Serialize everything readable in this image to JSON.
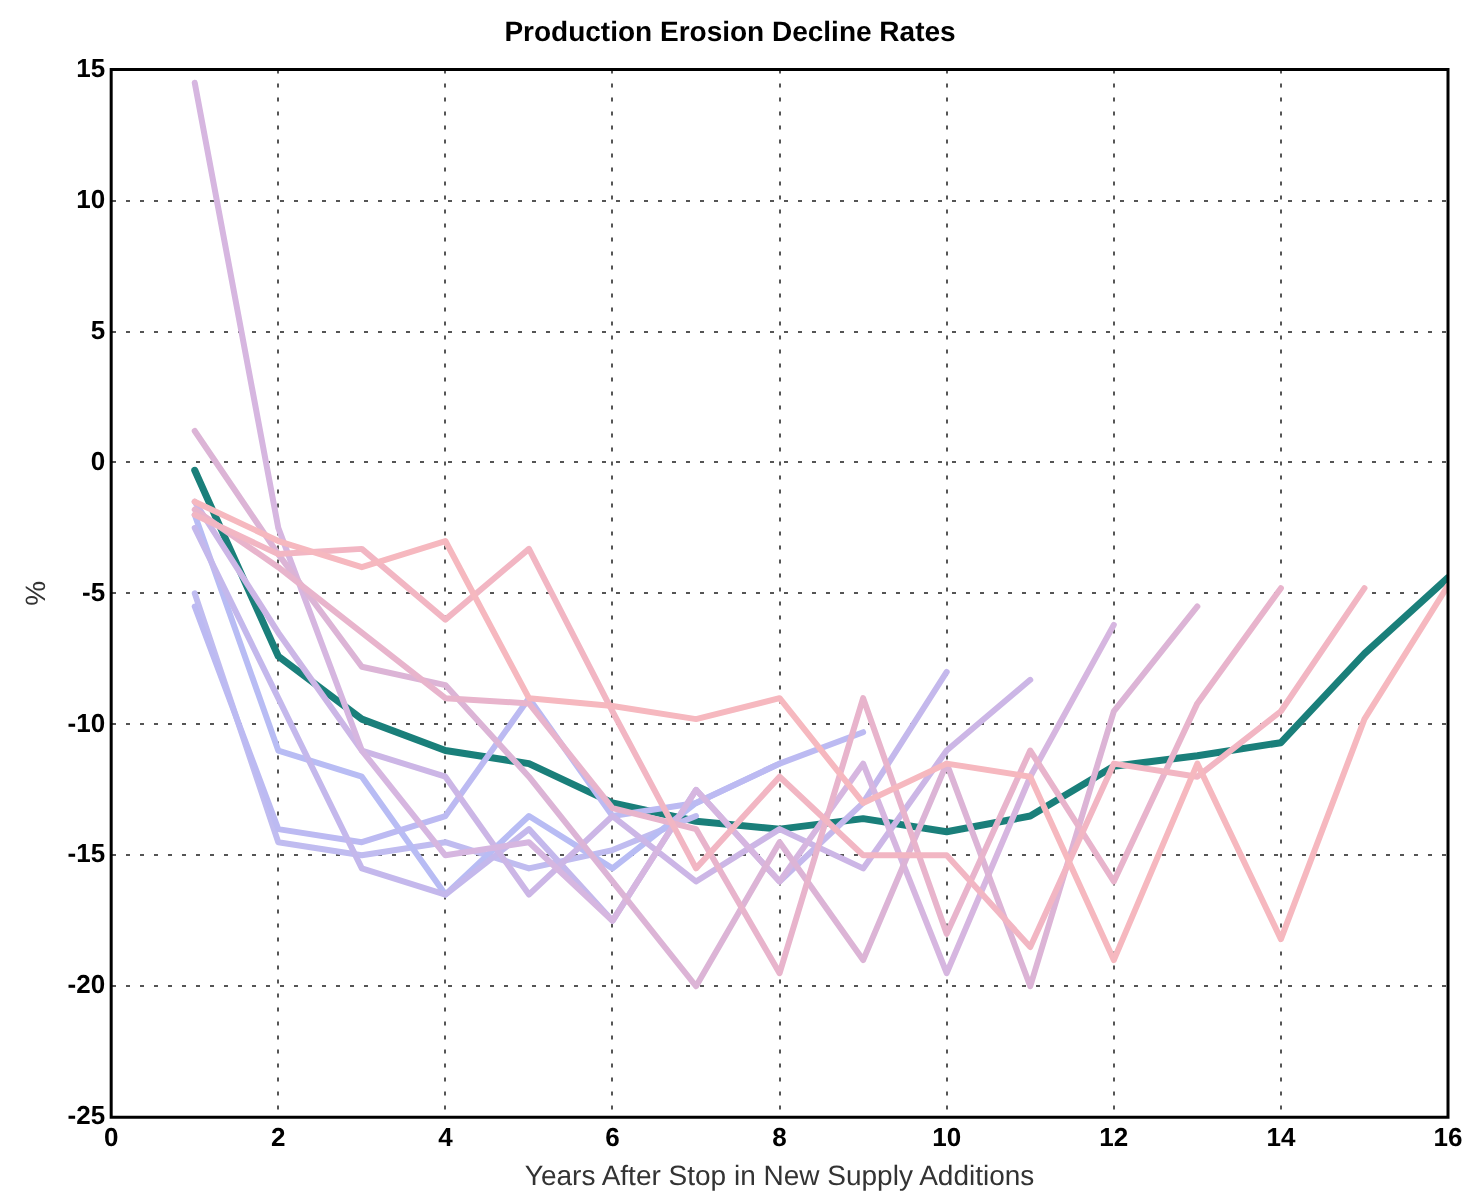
{
  "chart_data": {
    "type": "line",
    "title": "Production Erosion Decline Rates",
    "xlabel": "Years After Stop in New Supply Additions",
    "ylabel": "%",
    "xlim": [
      0,
      16
    ],
    "xticks": [
      0,
      2,
      4,
      6,
      8,
      10,
      12,
      14,
      16
    ],
    "ylim": [
      -25,
      15
    ],
    "yticks": [
      -25,
      -20,
      -15,
      -10,
      -5,
      0,
      5,
      10,
      15
    ],
    "grid": true,
    "legend": false,
    "marker": "none",
    "line_style": "solid",
    "series": [
      {
        "color": "#f6b8bf",
        "x": [
          1,
          2,
          3,
          4,
          5,
          6,
          7,
          8,
          9,
          10,
          11,
          12,
          13,
          14,
          15,
          16
        ],
        "values": [
          -1.5,
          -3,
          -4,
          -3,
          -9,
          -9.3,
          -9.8,
          -9,
          -13,
          -11.5,
          -12,
          -19,
          -11.5,
          -18.2,
          -9.8,
          -4.7
        ]
      },
      {
        "color": "#f2b6c3",
        "x": [
          1,
          2,
          3,
          4,
          5,
          6,
          7,
          8,
          9,
          10,
          11,
          12,
          13,
          14,
          15
        ],
        "values": [
          -2,
          -3.5,
          -3.3,
          -6,
          -3.3,
          -9.5,
          -15.5,
          -12,
          -15,
          -15,
          -18.5,
          -11.5,
          -12,
          -9.5,
          -4.8
        ]
      },
      {
        "color": "#e8b4cc",
        "x": [
          1,
          2,
          3,
          4,
          5,
          6,
          7,
          8,
          9,
          10,
          11,
          12,
          13,
          14
        ],
        "values": [
          -1.8,
          -4,
          -6.5,
          -9,
          -9.2,
          -13.2,
          -14,
          -19.5,
          -9,
          -18,
          -11,
          -16,
          -9.2,
          -4.8
        ]
      },
      {
        "color": "#dcb4d6",
        "x": [
          1,
          2,
          3,
          4,
          5,
          6,
          7,
          8,
          9,
          10,
          11,
          12,
          13
        ],
        "values": [
          1.2,
          -3.5,
          -7.8,
          -8.5,
          -12,
          -16,
          -20,
          -14.5,
          -19,
          -11.5,
          -20,
          -9.5,
          -5.5
        ]
      },
      {
        "color": "#d6b6e0",
        "x": [
          1,
          2,
          3,
          4,
          5,
          6,
          7,
          8,
          9,
          10,
          11,
          12
        ],
        "values": [
          14.5,
          -2.5,
          -11,
          -15,
          -14.5,
          -17.5,
          -12.5,
          -16,
          -11.5,
          -19.5,
          -12,
          -6.2
        ]
      },
      {
        "color": "#ccb6e6",
        "x": [
          1,
          2,
          3,
          4,
          5,
          6,
          7,
          8,
          9,
          10,
          11
        ],
        "values": [
          -1.5,
          -6.5,
          -11,
          -12,
          -16.5,
          -13.5,
          -16,
          -14,
          -15.5,
          -11,
          -8.3
        ]
      },
      {
        "color": "#c4b8ec",
        "x": [
          1,
          2,
          3,
          4,
          5,
          6,
          7,
          8,
          9,
          10
        ],
        "values": [
          -2.5,
          -9,
          -15.5,
          -16.5,
          -14,
          -17.5,
          -12.5,
          -16,
          -13,
          -8
        ]
      },
      {
        "color": "#bcbaf2",
        "x": [
          1,
          2,
          3,
          4,
          5,
          6,
          7,
          8,
          9
        ],
        "values": [
          -5.5,
          -14,
          -14.5,
          -13.5,
          -9,
          -13.5,
          -13,
          -11.5,
          -10.3
        ]
      },
      {
        "color": "#b8bcf4",
        "x": [
          1,
          2,
          3,
          4,
          5,
          6,
          7,
          8
        ],
        "values": [
          -2,
          -11,
          -12,
          -16.5,
          -13.5,
          -15.5,
          -13,
          -11.5
        ]
      },
      {
        "color": "#c0bcf0",
        "x": [
          1,
          2,
          3,
          4,
          5,
          6,
          7
        ],
        "values": [
          -5,
          -14.5,
          -15,
          -14.5,
          -15.5,
          -14.8,
          -13.5
        ]
      },
      {
        "color": "#1a7f7a",
        "x": [
          1,
          2,
          3,
          4,
          5,
          6,
          7,
          8,
          9,
          10,
          11,
          12,
          13,
          14,
          15,
          16
        ],
        "values": [
          -0.3,
          -7.4,
          -9.8,
          -11,
          -11.5,
          -13,
          -13.7,
          -14,
          -13.6,
          -14.1,
          -13.5,
          -11.6,
          -11.2,
          -10.7,
          -7.3,
          -4.4
        ]
      }
    ]
  }
}
